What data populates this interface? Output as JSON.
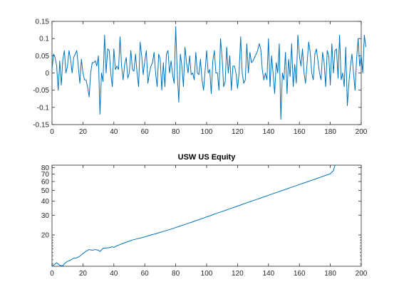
{
  "chart_data": [
    {
      "type": "line",
      "title": "",
      "xlabel": "",
      "ylabel": "",
      "xlim": [
        0,
        200
      ],
      "ylim": [
        -0.15,
        0.15
      ],
      "xticks": [
        0,
        20,
        40,
        60,
        80,
        100,
        120,
        140,
        160,
        180,
        200
      ],
      "yticks": [
        -0.15,
        -0.1,
        -0.05,
        0,
        0.05,
        0.1,
        0.15
      ],
      "ytick_labels": [
        "-0.15",
        "-0.1",
        "-0.05",
        "0",
        "0.05",
        "0.1",
        "0.15"
      ],
      "grid": false,
      "line_color": "#0072bd",
      "series": [
        {
          "values": [
            0.01,
            0.055,
            0.045,
            0.02,
            -0.05,
            0.035,
            -0.035,
            0.04,
            0.065,
            0.0,
            0.02,
            0.065,
            0.04,
            0.0,
            0.045,
            0.055,
            0.065,
            0.02,
            -0.03,
            0.04,
            0.0,
            -0.02,
            -0.02,
            -0.04,
            -0.07,
            0.0,
            0.03,
            0.03,
            0.035,
            0.02,
            0.05,
            -0.12,
            0.0,
            -0.025,
            0.11,
            0.0,
            0.07,
            0.065,
            0.0,
            -0.04,
            0.07,
            0.01,
            0.02,
            0.01,
            0.105,
            0.02,
            -0.02,
            0.025,
            0.045,
            -0.015,
            0.0,
            0.065,
            0.01,
            0.005,
            0.055,
            0.0,
            -0.04,
            0.09,
            0.05,
            -0.005,
            0.035,
            0.065,
            -0.03,
            0.0,
            0.02,
            0.03,
            0.06,
            0.0,
            -0.04,
            0.055,
            0.04,
            -0.05,
            0.03,
            -0.04,
            0.055,
            0.065,
            0.0,
            0.035,
            -0.005,
            -0.03,
            0.135,
            0.0,
            -0.085,
            0.055,
            0.02,
            -0.04,
            0.075,
            0.03,
            0.0,
            0.05,
            -0.005,
            0.0,
            -0.02,
            0.06,
            0.0,
            -0.005,
            0.04,
            -0.02,
            -0.05,
            0.005,
            0.065,
            0.0,
            0.01,
            -0.06,
            0.035,
            0.065,
            0.0,
            0.0,
            -0.05,
            0.1,
            0.045,
            -0.04,
            -0.025,
            0.075,
            0.0,
            0.05,
            -0.05,
            0.02,
            0.02,
            0.0,
            -0.045,
            0.0,
            0.105,
            0.0,
            -0.03,
            -0.02,
            0.085,
            0.0,
            0.06,
            0.03,
            0.035,
            0.045,
            0.055,
            0.065,
            0.085,
            0.07,
            0.01,
            -0.02,
            0.0,
            -0.02,
            0.1,
            -0.04,
            0.05,
            0.0,
            -0.06,
            0.03,
            0.0,
            0.085,
            -0.135,
            0.0,
            -0.02,
            0.06,
            -0.06,
            0.04,
            -0.01,
            0.085,
            -0.04,
            0.025,
            -0.03,
            0.11,
            0.05,
            0.02,
            0.07,
            0.0,
            -0.03,
            0.03,
            0.09,
            0.06,
            0.0,
            -0.02,
            0.055,
            0.07,
            0.035,
            0.0,
            -0.02,
            0.06,
            0.03,
            -0.04,
            0.065,
            0.05,
            -0.035,
            0.085,
            0.0,
            0.065,
            0.07,
            -0.015,
            0.11,
            -0.02,
            0.0,
            -0.04,
            0.075,
            -0.095,
            -0.03,
            0.02,
            0.055,
            0.0,
            -0.05,
            0.04,
            0.1,
            0.02,
            0.05,
            0.0,
            0.11,
            0.075
          ]
        }
      ]
    },
    {
      "type": "line",
      "title": "USW US Equity",
      "xlabel": "",
      "ylabel": "",
      "xlim": [
        0,
        200
      ],
      "ylim": [
        10.5,
        84
      ],
      "yscale": "log",
      "xticks": [
        0,
        20,
        40,
        60,
        80,
        100,
        120,
        140,
        160,
        180,
        200
      ],
      "yticks": [
        20,
        30,
        40,
        50,
        60,
        70,
        80
      ],
      "ytick_labels": [
        "20",
        "30",
        "40",
        "50",
        "60",
        "70",
        "80"
      ],
      "grid": false,
      "line_color": "#0072bd",
      "series": [
        {
          "points": [
            [
              0,
              10.5
            ],
            [
              2,
              11.0
            ],
            [
              3,
              11.3
            ],
            [
              5,
              10.7
            ],
            [
              7,
              10.6
            ],
            [
              8,
              11.1
            ],
            [
              10,
              11.6
            ],
            [
              12,
              11.9
            ],
            [
              14,
              12.4
            ],
            [
              16,
              12.5
            ],
            [
              18,
              12.9
            ],
            [
              19,
              13.3
            ],
            [
              20,
              13.6
            ],
            [
              22,
              14.3
            ],
            [
              24,
              14.8
            ],
            [
              26,
              14.6
            ],
            [
              28,
              14.8
            ],
            [
              30,
              14.6
            ],
            [
              31,
              14.2
            ],
            [
              33,
              15.2
            ],
            [
              35,
              15.3
            ],
            [
              37,
              15.4
            ],
            [
              39,
              15.7
            ],
            [
              40,
              15.5
            ],
            [
              42,
              16.0
            ],
            [
              44,
              16.4
            ],
            [
              46,
              16.8
            ],
            [
              48,
              17.2
            ],
            [
              50,
              17.6
            ],
            [
              52,
              18.0
            ],
            [
              54,
              18.3
            ],
            [
              56,
              18.6
            ],
            [
              58,
              18.9
            ],
            [
              60,
              19.2
            ],
            [
              62,
              19.6
            ],
            [
              64,
              20.0
            ],
            [
              66,
              20.3
            ],
            [
              68,
              20.7
            ],
            [
              70,
              21.1
            ],
            [
              72,
              21.5
            ],
            [
              74,
              21.9
            ],
            [
              76,
              22.3
            ],
            [
              78,
              22.8
            ],
            [
              80,
              23.3
            ],
            [
              82,
              23.8
            ],
            [
              84,
              24.3
            ],
            [
              86,
              24.8
            ],
            [
              88,
              25.4
            ],
            [
              90,
              25.9
            ],
            [
              92,
              26.5
            ],
            [
              94,
              27.1
            ],
            [
              96,
              27.7
            ],
            [
              98,
              28.3
            ],
            [
              100,
              29.0
            ],
            [
              102,
              29.6
            ],
            [
              104,
              30.3
            ],
            [
              106,
              31.0
            ],
            [
              108,
              31.7
            ],
            [
              110,
              32.4
            ],
            [
              112,
              33.1
            ],
            [
              114,
              33.9
            ],
            [
              116,
              34.6
            ],
            [
              118,
              35.4
            ],
            [
              120,
              36.2
            ],
            [
              122,
              37.0
            ],
            [
              124,
              37.9
            ],
            [
              126,
              38.7
            ],
            [
              128,
              39.6
            ],
            [
              130,
              40.5
            ],
            [
              132,
              41.4
            ],
            [
              134,
              42.3
            ],
            [
              136,
              43.3
            ],
            [
              138,
              44.2
            ],
            [
              140,
              45.2
            ],
            [
              142,
              46.2
            ],
            [
              144,
              47.3
            ],
            [
              146,
              48.3
            ],
            [
              148,
              49.4
            ],
            [
              150,
              50.5
            ],
            [
              152,
              51.6
            ],
            [
              154,
              52.8
            ],
            [
              156,
              53.9
            ],
            [
              158,
              55.1
            ],
            [
              160,
              56.4
            ],
            [
              162,
              57.6
            ],
            [
              164,
              58.9
            ],
            [
              166,
              60.2
            ],
            [
              168,
              61.6
            ],
            [
              170,
              62.9
            ],
            [
              172,
              64.4
            ],
            [
              174,
              65.8
            ],
            [
              176,
              67.3
            ],
            [
              178,
              68.8
            ],
            [
              180,
              70.3
            ],
            [
              182,
              75.0
            ],
            [
              183,
              84.0
            ]
          ]
        }
      ]
    }
  ]
}
